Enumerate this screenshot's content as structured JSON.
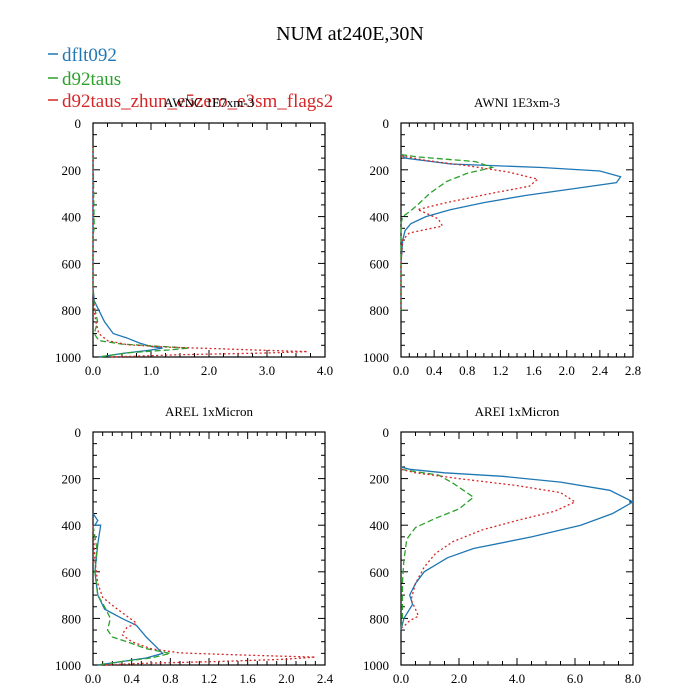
{
  "figure_title": "NUM at240E,30N",
  "legend": [
    {
      "label": "dflt092",
      "color": "#1f77b4",
      "dash": "solid"
    },
    {
      "label": "d92taus",
      "color": "#2ca02c",
      "dash": "dashed"
    },
    {
      "label": "d92taus_zhun_e5zero_e3sm_flags2",
      "color": "#d62728",
      "dash": "dotted"
    }
  ],
  "chart_data": [
    {
      "type": "line",
      "title": "AWNC  1E7xm-3",
      "xlim": [
        0,
        4
      ],
      "ylim": [
        1000,
        0
      ],
      "xticks": [
        0,
        1,
        2,
        3,
        4
      ],
      "xtick_labels": [
        "0.0",
        "1.0",
        "2.0",
        "3.0",
        "4.0"
      ],
      "yticks": [
        0,
        200,
        400,
        600,
        800,
        1000
      ],
      "ytick_labels": [
        "0",
        "200",
        "400",
        "600",
        "800",
        "1000"
      ],
      "series": [
        {
          "name": "dflt092",
          "points": [
            [
              0,
              100
            ],
            [
              0,
              700
            ],
            [
              0.02,
              760
            ],
            [
              0.1,
              800
            ],
            [
              0.2,
              850
            ],
            [
              0.35,
              900
            ],
            [
              0.6,
              920
            ],
            [
              0.8,
              940
            ],
            [
              1.0,
              955
            ],
            [
              1.2,
              962
            ],
            [
              1.0,
              970
            ],
            [
              0.5,
              985
            ],
            [
              0.1,
              1000
            ]
          ]
        },
        {
          "name": "d92taus",
          "points": [
            [
              0,
              100
            ],
            [
              0.02,
              450
            ],
            [
              0,
              480
            ],
            [
              0,
              700
            ],
            [
              0.02,
              780
            ],
            [
              0.08,
              850
            ],
            [
              0.02,
              900
            ],
            [
              0.1,
              930
            ],
            [
              0.5,
              945
            ],
            [
              1.2,
              955
            ],
            [
              1.65,
              962
            ],
            [
              1.3,
              970
            ],
            [
              0.6,
              982
            ],
            [
              0.1,
              1000
            ]
          ]
        },
        {
          "name": "d92taus_zhun_e5zero_e3sm_flags2",
          "points": [
            [
              0,
              100
            ],
            [
              0,
              700
            ],
            [
              0.02,
              800
            ],
            [
              0.05,
              850
            ],
            [
              0.1,
              900
            ],
            [
              0.25,
              930
            ],
            [
              0.6,
              948
            ],
            [
              1.3,
              958
            ],
            [
              2.2,
              965
            ],
            [
              3.0,
              972
            ],
            [
              3.7,
              977
            ],
            [
              3.0,
              983
            ],
            [
              1.5,
              990
            ],
            [
              0.3,
              1000
            ]
          ]
        }
      ]
    },
    {
      "type": "line",
      "title": "AWNI  1E3xm-3",
      "xlim": [
        0,
        2.8
      ],
      "ylim": [
        1000,
        0
      ],
      "xticks": [
        0,
        0.4,
        0.8,
        1.2,
        1.6,
        2.0,
        2.4,
        2.8
      ],
      "xtick_labels": [
        "0.0",
        "0.4",
        "0.8",
        "1.2",
        "1.6",
        "2.0",
        "2.4",
        "2.8"
      ],
      "yticks": [
        0,
        200,
        400,
        600,
        800,
        1000
      ],
      "ytick_labels": [
        "0",
        "200",
        "400",
        "600",
        "800",
        "1000"
      ],
      "series": [
        {
          "name": "dflt092",
          "points": [
            [
              0,
              130
            ],
            [
              0.05,
              150
            ],
            [
              0.6,
              175
            ],
            [
              1.7,
              190
            ],
            [
              2.4,
              205
            ],
            [
              2.65,
              230
            ],
            [
              2.6,
              255
            ],
            [
              2.1,
              280
            ],
            [
              1.5,
              310
            ],
            [
              1.0,
              340
            ],
            [
              0.6,
              370
            ],
            [
              0.3,
              400
            ],
            [
              0.12,
              430
            ],
            [
              0.05,
              460
            ],
            [
              0.02,
              500
            ],
            [
              0,
              600
            ],
            [
              0,
              800
            ]
          ]
        },
        {
          "name": "d92taus",
          "points": [
            [
              0,
              135
            ],
            [
              0.2,
              145
            ],
            [
              0.9,
              165
            ],
            [
              1.1,
              190
            ],
            [
              0.8,
              215
            ],
            [
              0.55,
              250
            ],
            [
              0.35,
              300
            ],
            [
              0.2,
              350
            ],
            [
              0.1,
              380
            ],
            [
              0.02,
              400
            ],
            [
              0,
              430
            ],
            [
              0,
              800
            ]
          ]
        },
        {
          "name": "d92taus_zhun_e5zero_e3sm_flags2",
          "points": [
            [
              0,
              140
            ],
            [
              0.3,
              160
            ],
            [
              0.85,
              185
            ],
            [
              1.3,
              210
            ],
            [
              1.65,
              240
            ],
            [
              1.55,
              270
            ],
            [
              1.1,
              300
            ],
            [
              0.55,
              340
            ],
            [
              0.2,
              370
            ],
            [
              0.3,
              385
            ],
            [
              0.45,
              410
            ],
            [
              0.5,
              440
            ],
            [
              0.3,
              455
            ],
            [
              0.1,
              470
            ],
            [
              0.02,
              500
            ],
            [
              0,
              600
            ],
            [
              0,
              800
            ]
          ]
        }
      ]
    },
    {
      "type": "line",
      "title": "AREL  1xMicron",
      "xlim": [
        0,
        2.4
      ],
      "ylim": [
        1000,
        0
      ],
      "xticks": [
        0,
        0.4,
        0.8,
        1.2,
        1.6,
        2.0,
        2.4
      ],
      "xtick_labels": [
        "0.0",
        "0.4",
        "0.8",
        "1.2",
        "1.6",
        "2.0",
        "2.4"
      ],
      "yticks": [
        0,
        200,
        400,
        600,
        800,
        1000
      ],
      "ytick_labels": [
        "0",
        "200",
        "400",
        "600",
        "800",
        "1000"
      ],
      "series": [
        {
          "name": "dflt092",
          "points": [
            [
              0,
              350
            ],
            [
              0.05,
              380
            ],
            [
              0.02,
              400
            ],
            [
              0.08,
              400
            ],
            [
              0.05,
              480
            ],
            [
              0.02,
              600
            ],
            [
              0.05,
              700
            ],
            [
              0.12,
              760
            ],
            [
              0.3,
              800
            ],
            [
              0.45,
              830
            ],
            [
              0.55,
              880
            ],
            [
              0.65,
              920
            ],
            [
              0.72,
              950
            ],
            [
              0.55,
              970
            ],
            [
              0.3,
              985
            ],
            [
              0.05,
              1000
            ]
          ]
        },
        {
          "name": "d92taus",
          "points": [
            [
              0,
              400
            ],
            [
              0.04,
              500
            ],
            [
              0.02,
              600
            ],
            [
              0.05,
              700
            ],
            [
              0.12,
              750
            ],
            [
              0.18,
              800
            ],
            [
              0.15,
              850
            ],
            [
              0.2,
              880
            ],
            [
              0.35,
              900
            ],
            [
              0.55,
              930
            ],
            [
              0.8,
              950
            ],
            [
              0.6,
              970
            ],
            [
              0.3,
              985
            ],
            [
              0.05,
              1000
            ]
          ]
        },
        {
          "name": "d92taus_zhun_e5zero_e3sm_flags2",
          "points": [
            [
              0,
              400
            ],
            [
              0.02,
              550
            ],
            [
              0.05,
              650
            ],
            [
              0.1,
              710
            ],
            [
              0.22,
              750
            ],
            [
              0.35,
              790
            ],
            [
              0.45,
              820
            ],
            [
              0.35,
              840
            ],
            [
              0.3,
              870
            ],
            [
              0.4,
              900
            ],
            [
              0.6,
              930
            ],
            [
              0.9,
              948
            ],
            [
              1.6,
              958
            ],
            [
              2.3,
              966
            ],
            [
              2.0,
              975
            ],
            [
              1.3,
              985
            ],
            [
              0.5,
              993
            ],
            [
              0.1,
              1000
            ]
          ]
        }
      ]
    },
    {
      "type": "line",
      "title": "AREI  1xMicron",
      "xlim": [
        0,
        8
      ],
      "ylim": [
        1000,
        0
      ],
      "xticks": [
        0,
        2,
        4,
        6,
        8
      ],
      "xtick_labels": [
        "0.0",
        "2.0",
        "4.0",
        "6.0",
        "8.0"
      ],
      "yticks": [
        0,
        200,
        400,
        600,
        800,
        1000
      ],
      "ytick_labels": [
        "0",
        "200",
        "400",
        "600",
        "800",
        "1000"
      ],
      "series": [
        {
          "name": "dflt092",
          "points": [
            [
              0,
              150
            ],
            [
              0.3,
              160
            ],
            [
              1.5,
              175
            ],
            [
              3.5,
              190
            ],
            [
              5.5,
              215
            ],
            [
              7.2,
              250
            ],
            [
              8.0,
              300
            ],
            [
              7.3,
              350
            ],
            [
              6.2,
              400
            ],
            [
              4.5,
              450
            ],
            [
              2.5,
              500
            ],
            [
              1.6,
              540
            ],
            [
              1.2,
              570
            ],
            [
              0.8,
              600
            ],
            [
              0.5,
              650
            ],
            [
              0.3,
              700
            ],
            [
              0.4,
              740
            ],
            [
              0.2,
              780
            ],
            [
              0.1,
              800
            ],
            [
              0,
              850
            ]
          ]
        },
        {
          "name": "d92taus",
          "points": [
            [
              0,
              160
            ],
            [
              0.5,
              170
            ],
            [
              1.3,
              185
            ],
            [
              1.8,
              220
            ],
            [
              2.5,
              280
            ],
            [
              2.0,
              330
            ],
            [
              1.2,
              370
            ],
            [
              0.5,
              410
            ],
            [
              0.2,
              460
            ],
            [
              0.1,
              550
            ],
            [
              0.05,
              650
            ],
            [
              0.05,
              750
            ],
            [
              0.05,
              800
            ],
            [
              0,
              850
            ]
          ]
        },
        {
          "name": "d92taus_zhun_e5zero_e3sm_flags2",
          "points": [
            [
              0,
              160
            ],
            [
              0.5,
              175
            ],
            [
              2.0,
              200
            ],
            [
              4.0,
              230
            ],
            [
              5.5,
              260
            ],
            [
              6.0,
              300
            ],
            [
              5.3,
              340
            ],
            [
              4.0,
              380
            ],
            [
              2.8,
              420
            ],
            [
              1.8,
              470
            ],
            [
              1.2,
              520
            ],
            [
              0.8,
              580
            ],
            [
              0.5,
              650
            ],
            [
              0.35,
              720
            ],
            [
              0.5,
              760
            ],
            [
              0.6,
              790
            ],
            [
              0.3,
              810
            ],
            [
              0.05,
              840
            ]
          ]
        }
      ]
    }
  ]
}
